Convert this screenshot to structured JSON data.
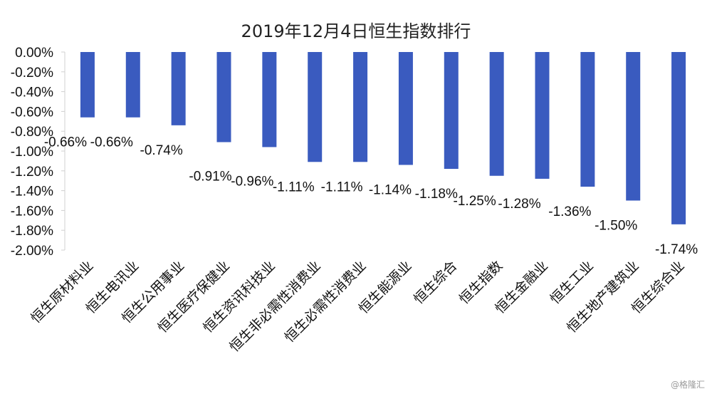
{
  "watermark": "@格隆汇",
  "chart_data": {
    "type": "bar",
    "title": "2019年12月4日恒生指数排行",
    "xlabel": "",
    "ylabel": "",
    "ylim": [
      -2.0,
      0.0
    ],
    "yticks": [
      "0.00%",
      "-0.20%",
      "-0.40%",
      "-0.60%",
      "-0.80%",
      "-1.00%",
      "-1.20%",
      "-1.40%",
      "-1.60%",
      "-1.80%",
      "-2.00%"
    ],
    "categories": [
      "恒生原材料业",
      "恒生电讯业",
      "恒生公用事业",
      "恒生医疗保健业",
      "恒生资讯科技业",
      "恒生非必需性消费业",
      "恒生必需性消费业",
      "恒生能源业",
      "恒生综合",
      "恒生指数",
      "恒生金融业",
      "恒生工业",
      "恒生地产建筑业",
      "恒生综合业"
    ],
    "values": [
      -0.66,
      -0.66,
      -0.74,
      -0.91,
      -0.96,
      -1.11,
      -1.11,
      -1.14,
      -1.18,
      -1.25,
      -1.28,
      -1.36,
      -1.5,
      -1.74
    ],
    "data_labels": [
      "-0.66%",
      "-0.66%",
      "-0.74%",
      "-0.91%",
      "-0.96%",
      "-1.11%",
      "-1.11%",
      "-1.14%",
      "-1.18%",
      "-1.25%",
      "-1.28%",
      "-1.36%",
      "-1.50%",
      "-1.74%"
    ],
    "bar_color": "#3a5bbf",
    "grid": false,
    "legend": "none"
  }
}
